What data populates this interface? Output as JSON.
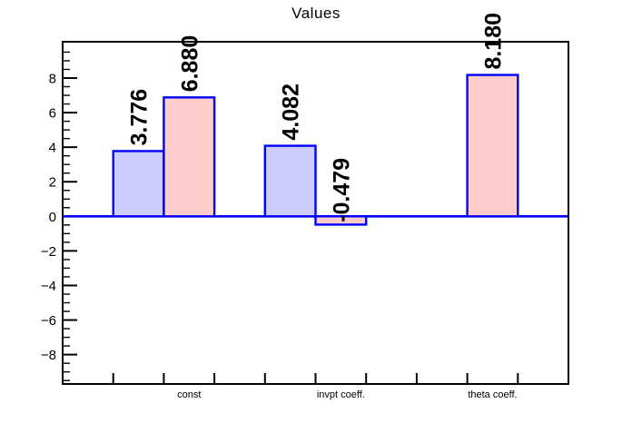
{
  "chart_data": {
    "type": "bar",
    "title": "Values",
    "n_bins": 10,
    "ylim": [
      -9.7,
      10.1
    ],
    "y_major_ticks": [
      -8,
      -6,
      -4,
      -2,
      0,
      2,
      4,
      6,
      8
    ],
    "y_minor_step": 0.5,
    "grid": false,
    "legend": false,
    "baseline": 0,
    "bars": [
      {
        "bin": 1,
        "value": 3.776,
        "label": "3.776",
        "series": "blue"
      },
      {
        "bin": 2,
        "value": 6.88,
        "label": "6.880",
        "series": "red"
      },
      {
        "bin": 4,
        "value": 4.082,
        "label": "4.082",
        "series": "blue"
      },
      {
        "bin": 5,
        "value": -0.479,
        "label": "-0.479",
        "series": "red"
      },
      {
        "bin": 8,
        "value": 8.18,
        "label": "8.180",
        "series": "red"
      }
    ],
    "categories": [
      {
        "bin": 2,
        "label": "const"
      },
      {
        "bin": 5,
        "label": "invpt coeff."
      },
      {
        "bin": 8,
        "label": "theta coeff."
      }
    ],
    "colors": {
      "blue_fill": "#ccccff",
      "red_fill": "#ffcccc",
      "bar_border": "#0000ff",
      "zero_line": "#0000ff",
      "frame": "#000000",
      "text": "#000000"
    }
  }
}
